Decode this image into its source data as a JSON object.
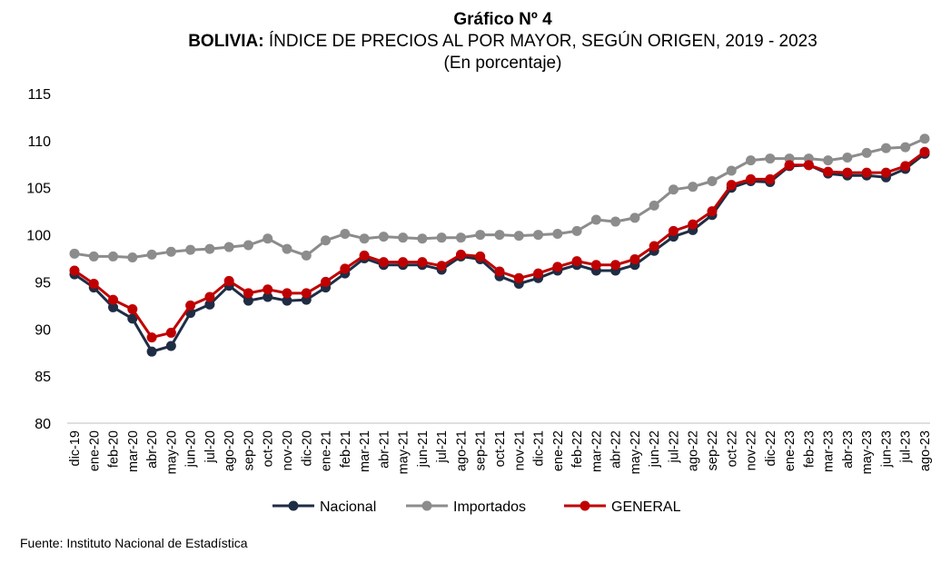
{
  "title": {
    "line1": "Gráfico Nº 4",
    "line2_bold": "BOLIVIA:",
    "line2_rest": " ÍNDICE DE PRECIOS AL POR MAYOR, SEGÚN ORIGEN, 2019 - 2023",
    "line3": "(En porcentaje)"
  },
  "source": "Fuente: Instituto Nacional de Estadística",
  "chart_data": {
    "type": "line",
    "title": "BOLIVIA: ÍNDICE DE PRECIOS AL POR MAYOR, SEGÚN ORIGEN, 2019 - 2023",
    "subtitle": "(En porcentaje)",
    "xlabel": "",
    "ylabel": "",
    "ylim": [
      80,
      115
    ],
    "yticks": [
      80,
      85,
      90,
      95,
      100,
      105,
      110,
      115
    ],
    "grid": false,
    "legend_position": "bottom",
    "categories": [
      "dic-19",
      "ene-20",
      "feb-20",
      "mar-20",
      "abr-20",
      "may-20",
      "jun-20",
      "jul-20",
      "ago-20",
      "sep-20",
      "oct-20",
      "nov-20",
      "dic-20",
      "ene-21",
      "feb-21",
      "mar-21",
      "abr-21",
      "may-21",
      "jun-21",
      "jul-21",
      "ago-21",
      "sep-21",
      "oct-21",
      "nov-21",
      "dic-21",
      "ene-22",
      "feb-22",
      "mar-22",
      "abr-22",
      "may-22",
      "jun-22",
      "jul-22",
      "ago-22",
      "sep-22",
      "oct-22",
      "nov-22",
      "dic-22",
      "ene-23",
      "feb-23",
      "mar-23",
      "abr-23",
      "may-23",
      "jun-23",
      "jul-23",
      "ago-23"
    ],
    "series": [
      {
        "name": "Nacional",
        "color": "#1f2d44",
        "values": [
          95.8,
          94.4,
          92.3,
          91.1,
          87.6,
          88.2,
          91.7,
          92.6,
          94.6,
          93.0,
          93.4,
          93.0,
          93.1,
          94.4,
          95.9,
          97.5,
          96.8,
          96.8,
          96.8,
          96.3,
          97.7,
          97.4,
          95.6,
          94.8,
          95.4,
          96.2,
          96.8,
          96.2,
          96.2,
          96.8,
          98.3,
          99.8,
          100.5,
          102.1,
          105.0,
          105.7,
          105.6,
          107.3,
          107.4,
          106.5,
          106.3,
          106.3,
          106.1,
          107.0,
          108.6
        ]
      },
      {
        "name": "Importados",
        "color": "#8c8c8c",
        "values": [
          98.0,
          97.7,
          97.7,
          97.6,
          97.9,
          98.2,
          98.4,
          98.5,
          98.7,
          98.9,
          99.6,
          98.5,
          97.8,
          99.4,
          100.1,
          99.6,
          99.8,
          99.7,
          99.6,
          99.7,
          99.7,
          100.0,
          100.0,
          99.9,
          100.0,
          100.1,
          100.4,
          101.6,
          101.4,
          101.8,
          103.1,
          104.8,
          105.1,
          105.7,
          106.8,
          107.9,
          108.1,
          108.1,
          108.1,
          107.9,
          108.2,
          108.7,
          109.2,
          109.3,
          110.2
        ]
      },
      {
        "name": "GENERAL",
        "color": "#c00000",
        "values": [
          96.2,
          94.8,
          93.1,
          92.1,
          89.1,
          89.6,
          92.5,
          93.4,
          95.1,
          93.8,
          94.2,
          93.8,
          93.8,
          95.0,
          96.4,
          97.8,
          97.1,
          97.1,
          97.1,
          96.7,
          97.9,
          97.7,
          96.1,
          95.4,
          95.9,
          96.6,
          97.2,
          96.8,
          96.8,
          97.4,
          98.8,
          100.4,
          101.1,
          102.5,
          105.3,
          105.9,
          105.9,
          107.4,
          107.4,
          106.7,
          106.6,
          106.6,
          106.6,
          107.3,
          108.8
        ]
      }
    ]
  }
}
